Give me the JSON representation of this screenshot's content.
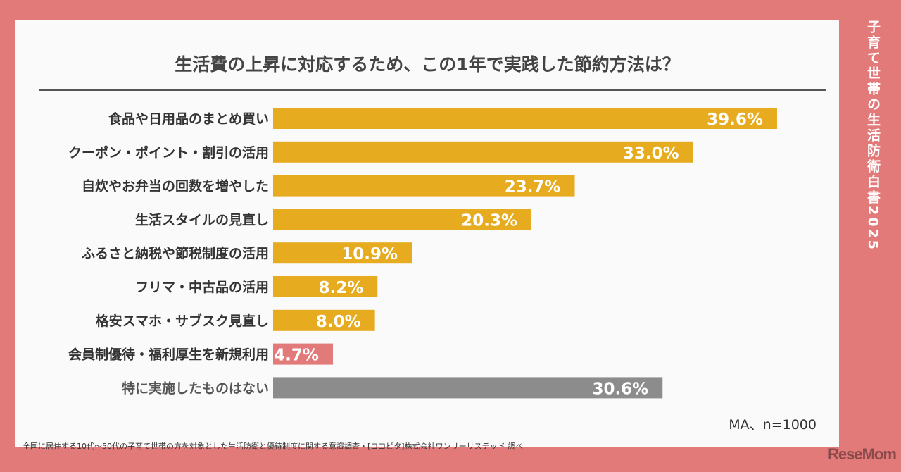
{
  "side_title": "子育て世帯の生活防衛白書2025",
  "logo": "ReseMom",
  "note": "MA、n=1000",
  "source": "全国に居住する10代〜50代の子育て世帯の方を対象とした生活防衛と優待制度に関する意識調査・[ココピタ]株式会社ワンリーリステッド 調べ",
  "colors": {
    "frame": "#e27a7a",
    "bar": "#e6ab1e",
    "highlight": "#e27a7a",
    "none": "#8c8c8c"
  },
  "chart_data": {
    "type": "bar",
    "orientation": "horizontal",
    "title": "生活費の上昇に対応するため、この1年で実践した節約方法は？",
    "categories": [
      "食品や日用品のまとめ買い",
      "クーポン・ポイント・割引の活用",
      "自炊やお弁当の回数を増やした",
      "生活スタイルの見直し",
      "ふるさと納税や節税制度の活用",
      "フリマ・中古品の活用",
      "格安スマホ・サブスク見直し",
      "会員制優待・福利厚生を新規利用",
      "特に実施したものはない"
    ],
    "values": [
      39.6,
      33.0,
      23.7,
      20.3,
      10.9,
      8.2,
      8.0,
      4.7,
      30.6
    ],
    "labels": [
      "39.6%",
      "33.0%",
      "23.7%",
      "20.3%",
      "10.9%",
      "8.2%",
      "8.0%",
      "4.7%",
      "30.6%"
    ],
    "bar_colors": [
      "bar",
      "bar",
      "bar",
      "bar",
      "bar",
      "bar",
      "bar",
      "highlight",
      "none"
    ],
    "unit": "%",
    "grid": false,
    "legend": "none"
  }
}
